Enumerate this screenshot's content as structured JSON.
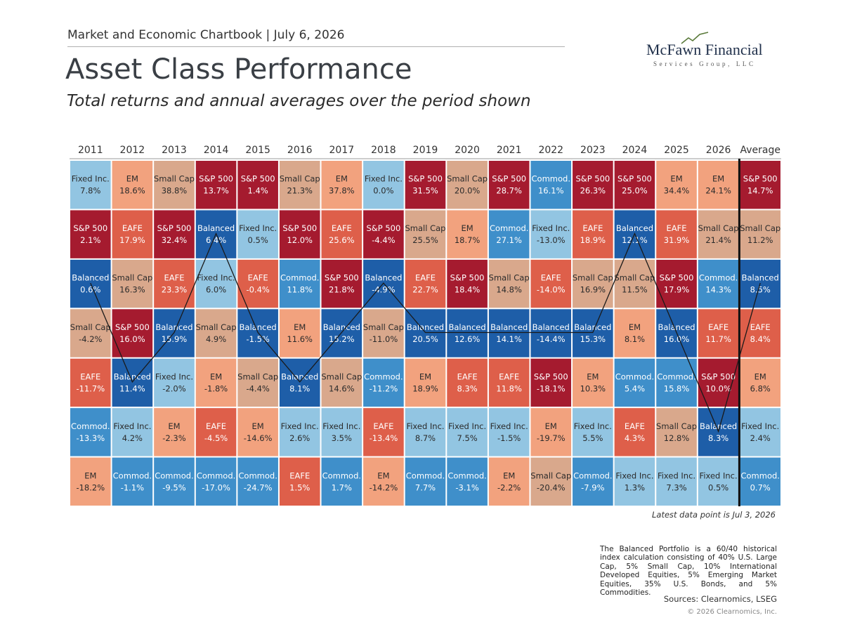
{
  "header": {
    "topline": "Market and Economic Chartbook | July 6, 2026",
    "title": "Asset Class Performance",
    "subtitle": "Total returns and annual averages over the period shown"
  },
  "logo": {
    "name": "McFawn Financial",
    "sub": "Services Group, LLC"
  },
  "highlight": "Balanced",
  "colors": {
    "S&P 500": {
      "fill": "#a51b2f",
      "text": "#ffffff"
    },
    "EM": {
      "fill": "#f2a27e",
      "text": "#2b2b2b"
    },
    "Small Cap": {
      "fill": "#d9a88c",
      "text": "#2b2b2b"
    },
    "Fixed Inc.": {
      "fill": "#92c5e2",
      "text": "#2b2b2b"
    },
    "EAFE": {
      "fill": "#de5f4a",
      "text": "#ffffff"
    },
    "Balanced": {
      "fill": "#1e5ea8",
      "text": "#ffffff"
    },
    "Commod.": {
      "fill": "#3f8fca",
      "text": "#ffffff"
    }
  },
  "grid": {
    "columns": [
      {
        "header": "2011",
        "cells": [
          [
            "Fixed Inc.",
            "7.8%"
          ],
          [
            "S&P 500",
            "2.1%"
          ],
          [
            "Balanced",
            "0.6%"
          ],
          [
            "Small Cap",
            "-4.2%"
          ],
          [
            "EAFE",
            "-11.7%"
          ],
          [
            "Commod.",
            "-13.3%"
          ],
          [
            "EM",
            "-18.2%"
          ]
        ]
      },
      {
        "header": "2012",
        "cells": [
          [
            "EM",
            "18.6%"
          ],
          [
            "EAFE",
            "17.9%"
          ],
          [
            "Small Cap",
            "16.3%"
          ],
          [
            "S&P 500",
            "16.0%"
          ],
          [
            "Balanced",
            "11.4%"
          ],
          [
            "Fixed Inc.",
            "4.2%"
          ],
          [
            "Commod.",
            "-1.1%"
          ]
        ]
      },
      {
        "header": "2013",
        "cells": [
          [
            "Small Cap",
            "38.8%"
          ],
          [
            "S&P 500",
            "32.4%"
          ],
          [
            "EAFE",
            "23.3%"
          ],
          [
            "Balanced",
            "15.9%"
          ],
          [
            "Fixed Inc.",
            "-2.0%"
          ],
          [
            "EM",
            "-2.3%"
          ],
          [
            "Commod.",
            "-9.5%"
          ]
        ]
      },
      {
        "header": "2014",
        "cells": [
          [
            "S&P 500",
            "13.7%"
          ],
          [
            "Balanced",
            "6.4%"
          ],
          [
            "Fixed Inc.",
            "6.0%"
          ],
          [
            "Small Cap",
            "4.9%"
          ],
          [
            "EM",
            "-1.8%"
          ],
          [
            "EAFE",
            "-4.5%"
          ],
          [
            "Commod.",
            "-17.0%"
          ]
        ]
      },
      {
        "header": "2015",
        "cells": [
          [
            "S&P 500",
            "1.4%"
          ],
          [
            "Fixed Inc.",
            "0.5%"
          ],
          [
            "EAFE",
            "-0.4%"
          ],
          [
            "Balanced",
            "-1.5%"
          ],
          [
            "Small Cap",
            "-4.4%"
          ],
          [
            "EM",
            "-14.6%"
          ],
          [
            "Commod.",
            "-24.7%"
          ]
        ]
      },
      {
        "header": "2016",
        "cells": [
          [
            "Small Cap",
            "21.3%"
          ],
          [
            "S&P 500",
            "12.0%"
          ],
          [
            "Commod.",
            "11.8%"
          ],
          [
            "EM",
            "11.6%"
          ],
          [
            "Balanced",
            "8.1%"
          ],
          [
            "Fixed Inc.",
            "2.6%"
          ],
          [
            "EAFE",
            "1.5%"
          ]
        ]
      },
      {
        "header": "2017",
        "cells": [
          [
            "EM",
            "37.8%"
          ],
          [
            "EAFE",
            "25.6%"
          ],
          [
            "S&P 500",
            "21.8%"
          ],
          [
            "Balanced",
            "15.2%"
          ],
          [
            "Small Cap",
            "14.6%"
          ],
          [
            "Fixed Inc.",
            "3.5%"
          ],
          [
            "Commod.",
            "1.7%"
          ]
        ]
      },
      {
        "header": "2018",
        "cells": [
          [
            "Fixed Inc.",
            "0.0%"
          ],
          [
            "S&P 500",
            "-4.4%"
          ],
          [
            "Balanced",
            "-4.9%"
          ],
          [
            "Small Cap",
            "-11.0%"
          ],
          [
            "Commod.",
            "-11.2%"
          ],
          [
            "EAFE",
            "-13.4%"
          ],
          [
            "EM",
            "-14.2%"
          ]
        ]
      },
      {
        "header": "2019",
        "cells": [
          [
            "S&P 500",
            "31.5%"
          ],
          [
            "Small Cap",
            "25.5%"
          ],
          [
            "EAFE",
            "22.7%"
          ],
          [
            "Balanced",
            "20.5%"
          ],
          [
            "EM",
            "18.9%"
          ],
          [
            "Fixed Inc.",
            "8.7%"
          ],
          [
            "Commod.",
            "7.7%"
          ]
        ]
      },
      {
        "header": "2020",
        "cells": [
          [
            "Small Cap",
            "20.0%"
          ],
          [
            "EM",
            "18.7%"
          ],
          [
            "S&P 500",
            "18.4%"
          ],
          [
            "Balanced",
            "12.6%"
          ],
          [
            "EAFE",
            "8.3%"
          ],
          [
            "Fixed Inc.",
            "7.5%"
          ],
          [
            "Commod.",
            "-3.1%"
          ]
        ]
      },
      {
        "header": "2021",
        "cells": [
          [
            "S&P 500",
            "28.7%"
          ],
          [
            "Commod.",
            "27.1%"
          ],
          [
            "Small Cap",
            "14.8%"
          ],
          [
            "Balanced",
            "14.1%"
          ],
          [
            "EAFE",
            "11.8%"
          ],
          [
            "Fixed Inc.",
            "-1.5%"
          ],
          [
            "EM",
            "-2.2%"
          ]
        ]
      },
      {
        "header": "2022",
        "cells": [
          [
            "Commod.",
            "16.1%"
          ],
          [
            "Fixed Inc.",
            "-13.0%"
          ],
          [
            "EAFE",
            "-14.0%"
          ],
          [
            "Balanced",
            "-14.4%"
          ],
          [
            "S&P 500",
            "-18.1%"
          ],
          [
            "EM",
            "-19.7%"
          ],
          [
            "Small Cap",
            "-20.4%"
          ]
        ]
      },
      {
        "header": "2023",
        "cells": [
          [
            "S&P 500",
            "26.3%"
          ],
          [
            "EAFE",
            "18.9%"
          ],
          [
            "Small Cap",
            "16.9%"
          ],
          [
            "Balanced",
            "15.3%"
          ],
          [
            "EM",
            "10.3%"
          ],
          [
            "Fixed Inc.",
            "5.5%"
          ],
          [
            "Commod.",
            "-7.9%"
          ]
        ]
      },
      {
        "header": "2024",
        "cells": [
          [
            "S&P 500",
            "25.0%"
          ],
          [
            "Balanced",
            "12.1%"
          ],
          [
            "Small Cap",
            "11.5%"
          ],
          [
            "EM",
            "8.1%"
          ],
          [
            "Commod.",
            "5.4%"
          ],
          [
            "EAFE",
            "4.3%"
          ],
          [
            "Fixed Inc.",
            "1.3%"
          ]
        ]
      },
      {
        "header": "2025",
        "cells": [
          [
            "EM",
            "34.4%"
          ],
          [
            "EAFE",
            "31.9%"
          ],
          [
            "S&P 500",
            "17.9%"
          ],
          [
            "Balanced",
            "16.0%"
          ],
          [
            "Commod.",
            "15.8%"
          ],
          [
            "Small Cap",
            "12.8%"
          ],
          [
            "Fixed Inc.",
            "7.3%"
          ]
        ]
      },
      {
        "header": "2026",
        "cells": [
          [
            "EM",
            "24.1%"
          ],
          [
            "Small Cap",
            "21.4%"
          ],
          [
            "Commod.",
            "14.3%"
          ],
          [
            "EAFE",
            "11.7%"
          ],
          [
            "S&P 500",
            "10.0%"
          ],
          [
            "Balanced",
            "8.3%"
          ],
          [
            "Fixed Inc.",
            "0.5%"
          ]
        ]
      },
      {
        "header": "Average",
        "cells": [
          [
            "S&P 500",
            "14.7%"
          ],
          [
            "Small Cap",
            "11.2%"
          ],
          [
            "Balanced",
            "8.5%"
          ],
          [
            "EAFE",
            "8.4%"
          ],
          [
            "EM",
            "6.8%"
          ],
          [
            "Fixed Inc.",
            "2.4%"
          ],
          [
            "Commod.",
            "0.7%"
          ]
        ]
      }
    ]
  },
  "footer": {
    "latest": "Latest data point is Jul 3, 2026",
    "note": "The Balanced Portfolio is a 60/40 historical index calculation consisting of 40% U.S. Large Cap, 5% Small Cap, 10% International Developed Equities, 5% Emerging Market Equities, 35% U.S. Bonds, and 5% Commodities.",
    "sources": "Sources: Clearnomics, LSEG",
    "copyright": "© 2026 Clearnomics, Inc."
  }
}
